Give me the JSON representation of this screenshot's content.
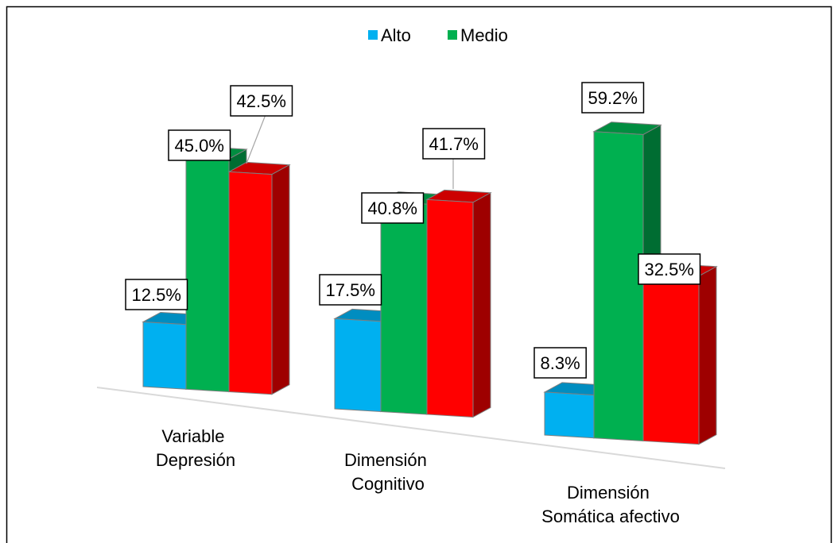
{
  "chart_data": {
    "type": "bar",
    "title": "",
    "xlabel": "",
    "ylabel": "",
    "legend_position": "top",
    "grid": false,
    "categories": [
      [
        "Variable",
        "Depresión"
      ],
      [
        "Dimensión",
        "Cognitivo"
      ],
      [
        "Dimensión",
        "Somática afectivo"
      ]
    ],
    "series": [
      {
        "name": "Alto",
        "values": [
          12.5,
          17.5,
          8.3
        ],
        "labels": [
          "12.5%",
          "17.5%",
          "8.3%"
        ],
        "color": "#00b0f0"
      },
      {
        "name": "Medio",
        "values": [
          45.0,
          40.8,
          59.2
        ],
        "labels": [
          "45.0%",
          "40.8%",
          "59.2%"
        ],
        "color": "#00b050"
      },
      {
        "name": "",
        "values": [
          42.5,
          41.7,
          32.5
        ],
        "labels": [
          "42.5%",
          "41.7%",
          "32.5%"
        ],
        "color": "#ff0000"
      }
    ],
    "ylim": [
      0,
      60
    ]
  }
}
